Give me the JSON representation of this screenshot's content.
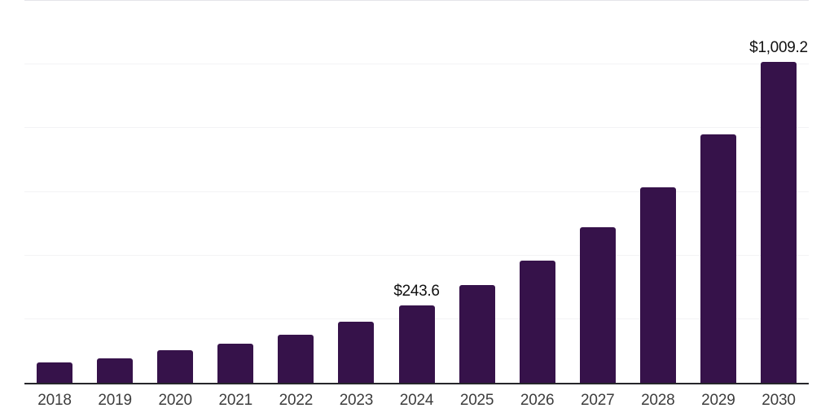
{
  "chart_data": {
    "type": "bar",
    "title": "",
    "xlabel": "",
    "ylabel": "",
    "categories": [
      "2018",
      "2019",
      "2020",
      "2021",
      "2022",
      "2023",
      "2024",
      "2025",
      "2026",
      "2027",
      "2028",
      "2029",
      "2030"
    ],
    "values": [
      63.8,
      77.3,
      101.5,
      123.2,
      150.5,
      191.4,
      243.6,
      306.2,
      384.5,
      489.2,
      615.0,
      780.1,
      1009.2
    ],
    "displayed_value_labels": {
      "2024": "$243.6",
      "2030": "$1,009.2"
    },
    "currency_prefix": "$",
    "ylim": [
      0,
      1200
    ],
    "gridline_step": 200,
    "grid": "horizontal-only",
    "y_tick_labels_visible": false,
    "legend_position": "none",
    "colors": {
      "bar": "#36124a",
      "axis_line": "#26262b",
      "gridline": "#f3f3f5",
      "top_gridline": "#e5e5e9",
      "tick_label": "#3d3d3d",
      "value_label": "#111111",
      "background": "#ffffff"
    }
  }
}
